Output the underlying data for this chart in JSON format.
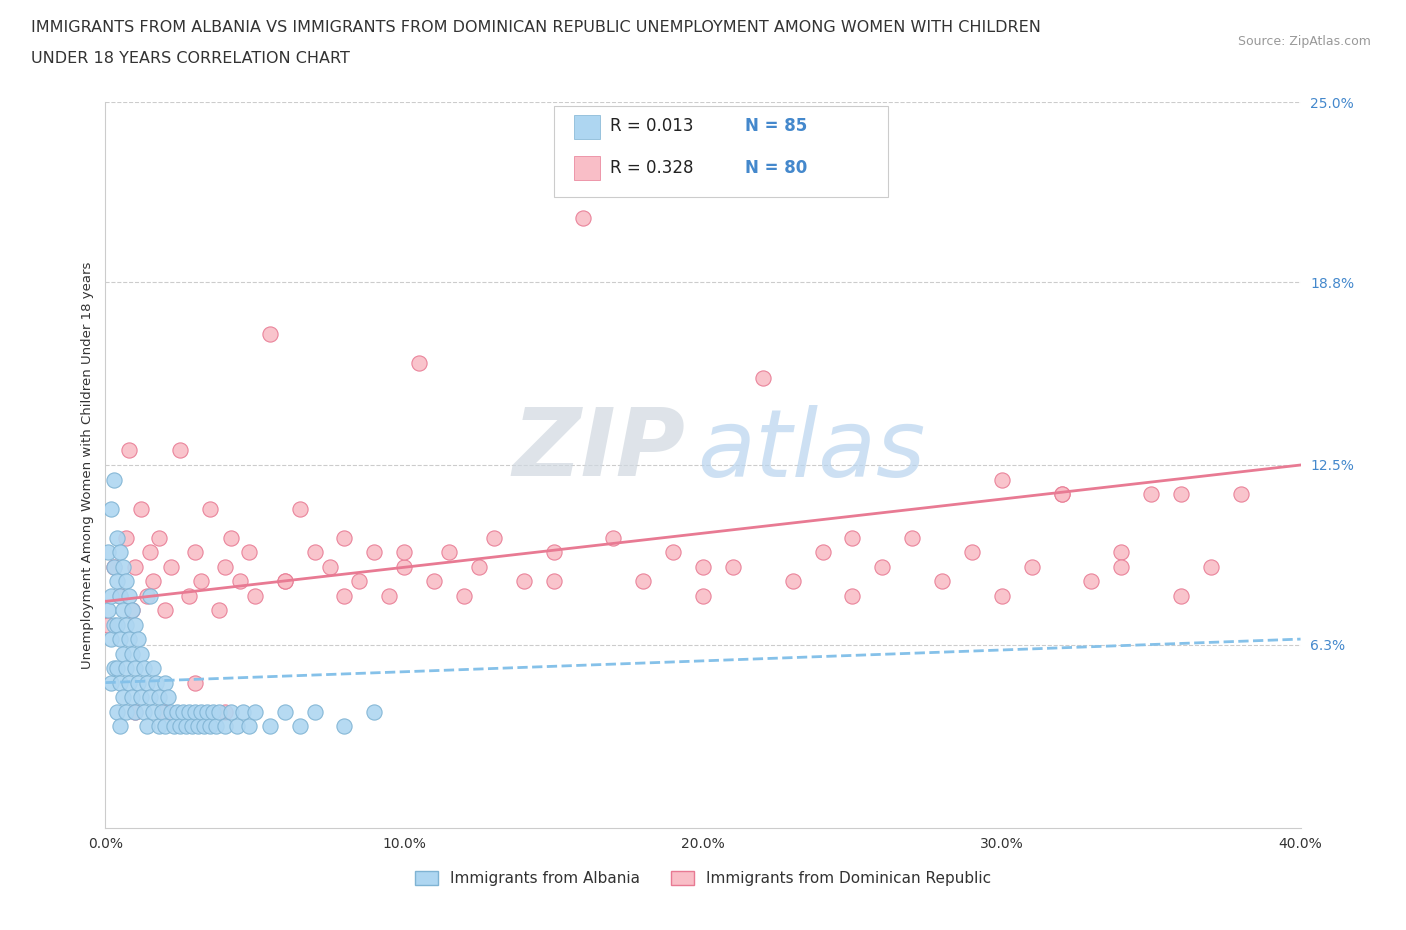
{
  "title_line1": "IMMIGRANTS FROM ALBANIA VS IMMIGRANTS FROM DOMINICAN REPUBLIC UNEMPLOYMENT AMONG WOMEN WITH CHILDREN",
  "title_line2": "UNDER 18 YEARS CORRELATION CHART",
  "source_text": "Source: ZipAtlas.com",
  "watermark_zip": "ZIP",
  "watermark_atlas": "atlas",
  "ylabel": "Unemployment Among Women with Children Under 18 years",
  "xlim": [
    0.0,
    0.4
  ],
  "ylim": [
    0.0,
    0.25
  ],
  "xtick_labels": [
    "0.0%",
    "10.0%",
    "20.0%",
    "30.0%",
    "40.0%"
  ],
  "xtick_values": [
    0.0,
    0.1,
    0.2,
    0.3,
    0.4
  ],
  "ytick_right_labels": [
    "25.0%",
    "18.8%",
    "12.5%",
    "6.3%"
  ],
  "ytick_right_values": [
    0.25,
    0.188,
    0.125,
    0.063
  ],
  "albania_color": "#aed6f1",
  "albania_edge_color": "#7fb3d3",
  "dr_color": "#f9bec7",
  "dr_edge_color": "#e87a93",
  "albania_trendline_color": "#85c1e9",
  "dr_trendline_color": "#e87a93",
  "R_albania": 0.013,
  "N_albania": 85,
  "R_dr": 0.328,
  "N_dr": 80,
  "legend_label_albania": "Immigrants from Albania",
  "legend_label_dr": "Immigrants from Dominican Republic",
  "title_fontsize": 11.5,
  "source_fontsize": 9,
  "label_color": "#4488cc",
  "grid_color": "#cccccc",
  "background_color": "#ffffff",
  "albania_x": [
    0.001,
    0.001,
    0.002,
    0.002,
    0.002,
    0.002,
    0.003,
    0.003,
    0.003,
    0.003,
    0.004,
    0.004,
    0.004,
    0.004,
    0.004,
    0.005,
    0.005,
    0.005,
    0.005,
    0.005,
    0.006,
    0.006,
    0.006,
    0.006,
    0.007,
    0.007,
    0.007,
    0.007,
    0.008,
    0.008,
    0.008,
    0.009,
    0.009,
    0.009,
    0.01,
    0.01,
    0.01,
    0.011,
    0.011,
    0.012,
    0.012,
    0.013,
    0.013,
    0.014,
    0.014,
    0.015,
    0.015,
    0.016,
    0.016,
    0.017,
    0.018,
    0.018,
    0.019,
    0.02,
    0.02,
    0.021,
    0.022,
    0.023,
    0.024,
    0.025,
    0.026,
    0.027,
    0.028,
    0.029,
    0.03,
    0.031,
    0.032,
    0.033,
    0.034,
    0.035,
    0.036,
    0.037,
    0.038,
    0.04,
    0.042,
    0.044,
    0.046,
    0.048,
    0.05,
    0.055,
    0.06,
    0.065,
    0.07,
    0.08,
    0.09
  ],
  "albania_y": [
    0.095,
    0.075,
    0.11,
    0.08,
    0.065,
    0.05,
    0.12,
    0.09,
    0.07,
    0.055,
    0.1,
    0.085,
    0.07,
    0.055,
    0.04,
    0.095,
    0.08,
    0.065,
    0.05,
    0.035,
    0.09,
    0.075,
    0.06,
    0.045,
    0.085,
    0.07,
    0.055,
    0.04,
    0.08,
    0.065,
    0.05,
    0.075,
    0.06,
    0.045,
    0.07,
    0.055,
    0.04,
    0.065,
    0.05,
    0.06,
    0.045,
    0.055,
    0.04,
    0.05,
    0.035,
    0.08,
    0.045,
    0.055,
    0.04,
    0.05,
    0.045,
    0.035,
    0.04,
    0.05,
    0.035,
    0.045,
    0.04,
    0.035,
    0.04,
    0.035,
    0.04,
    0.035,
    0.04,
    0.035,
    0.04,
    0.035,
    0.04,
    0.035,
    0.04,
    0.035,
    0.04,
    0.035,
    0.04,
    0.035,
    0.04,
    0.035,
    0.04,
    0.035,
    0.04,
    0.035,
    0.04,
    0.035,
    0.04,
    0.035,
    0.04
  ],
  "dr_x": [
    0.001,
    0.003,
    0.005,
    0.007,
    0.008,
    0.009,
    0.01,
    0.012,
    0.014,
    0.015,
    0.016,
    0.018,
    0.02,
    0.022,
    0.025,
    0.028,
    0.03,
    0.032,
    0.035,
    0.038,
    0.04,
    0.042,
    0.045,
    0.048,
    0.05,
    0.055,
    0.06,
    0.065,
    0.07,
    0.075,
    0.08,
    0.085,
    0.09,
    0.095,
    0.1,
    0.105,
    0.11,
    0.115,
    0.12,
    0.125,
    0.13,
    0.14,
    0.15,
    0.16,
    0.17,
    0.18,
    0.19,
    0.2,
    0.21,
    0.22,
    0.23,
    0.24,
    0.25,
    0.26,
    0.27,
    0.28,
    0.29,
    0.3,
    0.31,
    0.32,
    0.33,
    0.34,
    0.35,
    0.36,
    0.37,
    0.38,
    0.3,
    0.32,
    0.34,
    0.36,
    0.25,
    0.2,
    0.15,
    0.1,
    0.08,
    0.06,
    0.04,
    0.03,
    0.02,
    0.01
  ],
  "dr_y": [
    0.07,
    0.09,
    0.08,
    0.1,
    0.13,
    0.075,
    0.09,
    0.11,
    0.08,
    0.095,
    0.085,
    0.1,
    0.075,
    0.09,
    0.13,
    0.08,
    0.095,
    0.085,
    0.11,
    0.075,
    0.09,
    0.1,
    0.085,
    0.095,
    0.08,
    0.17,
    0.085,
    0.11,
    0.095,
    0.09,
    0.1,
    0.085,
    0.095,
    0.08,
    0.09,
    0.16,
    0.085,
    0.095,
    0.08,
    0.09,
    0.1,
    0.085,
    0.095,
    0.21,
    0.1,
    0.085,
    0.095,
    0.08,
    0.09,
    0.155,
    0.085,
    0.095,
    0.08,
    0.09,
    0.1,
    0.085,
    0.095,
    0.08,
    0.09,
    0.115,
    0.085,
    0.095,
    0.115,
    0.08,
    0.09,
    0.115,
    0.12,
    0.115,
    0.09,
    0.115,
    0.1,
    0.09,
    0.085,
    0.095,
    0.08,
    0.085,
    0.04,
    0.05,
    0.04,
    0.04
  ]
}
